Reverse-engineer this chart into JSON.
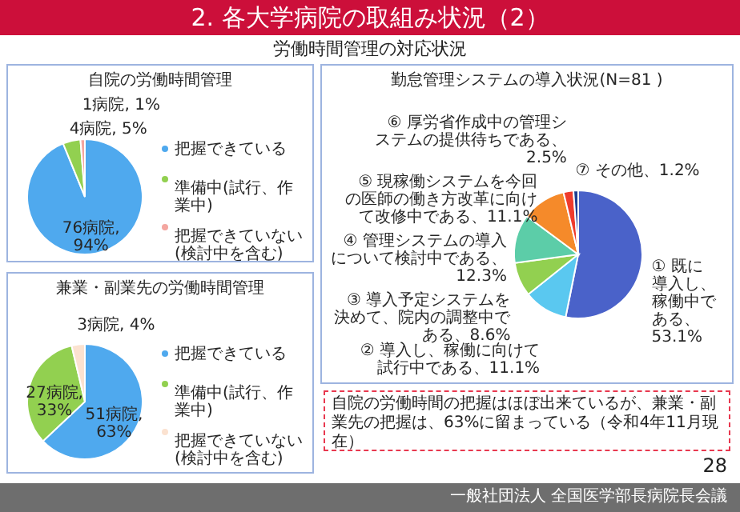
{
  "chart_data": [
    {
      "type": "pie",
      "title": "自院の労働時間管理",
      "categories": [
        "把握できている",
        "準備中(試行、作業中)",
        "把握できていない(検討中を含む)"
      ],
      "values": [
        76,
        4,
        1
      ],
      "colors": [
        "#4fa9ee",
        "#92d050",
        "#f4a6a0"
      ],
      "value_labels": [
        "76病院, 94%",
        "4病院, 5%",
        "1病院, 1%"
      ],
      "legend": "right",
      "annotations": [
        "2. 各大学病院の取組み状況（2）",
        "労働時間管理の対応状況"
      ]
    },
    {
      "type": "pie",
      "title": "兼業・副業先の労働時間管理",
      "categories": [
        "把握できている",
        "準備中(試行、作業中)",
        "把握できていない(検討中を含む)"
      ],
      "values": [
        51,
        27,
        3
      ],
      "colors": [
        "#4fa9ee",
        "#92d050",
        "#fbe2d0"
      ],
      "value_labels": [
        "51病院, 63%",
        "27病院, 33%",
        "3病院, 4%"
      ],
      "legend": "right"
    },
    {
      "type": "pie",
      "title": "勤怠管理システムの導入状況(N=81 )",
      "categories": [
        "① 既に導入し、稼働中である、53.1%",
        "② 導入し、稼働に向けて試行中である、11.1%",
        "③ 導入予定システムを決めて、院内の調整中である、8.6%",
        "④ 管理システムの導入について検討中である、12.3%",
        "⑤ 現稼働システムを今回の医師の働き方改革に向けて改修中である、11.1%",
        "⑥ 厚労省作成中の管理システムの提供待ちである、2.5%",
        "⑦ その他、1.2%"
      ],
      "values": [
        53.1,
        11.1,
        8.6,
        12.3,
        11.1,
        2.5,
        1.2
      ],
      "colors": [
        "#4a62c9",
        "#5ac8f0",
        "#92d050",
        "#5ccda8",
        "#f58a2a",
        "#ef3b2c",
        "#1f3f91"
      ],
      "annotations": [
        "自院の労働時間の把握はほぼ出来ているが、兼業・副業先の把握は、63%に留まっている（令和4年11月現在）",
        "28",
        "一般社団法人 全国医学部長病院長会議"
      ]
    }
  ]
}
